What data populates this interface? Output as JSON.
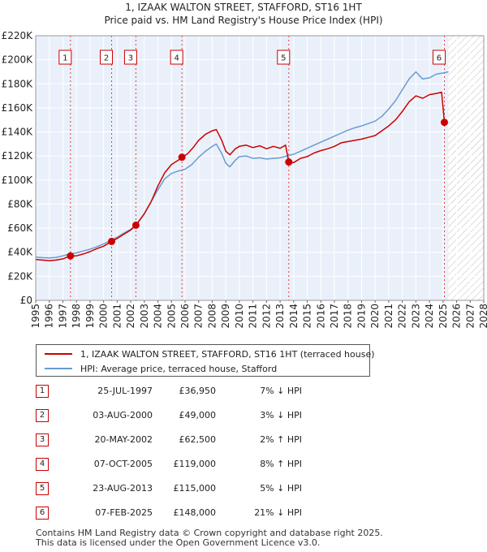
{
  "chart_data": {
    "type": "line",
    "title": "1, IZAAK WALTON STREET, STAFFORD, ST16 1HT",
    "subtitle": "Price paid vs. HM Land Registry's House Price Index (HPI)",
    "x_ticks": [
      "1995",
      "1996",
      "1997",
      "1998",
      "1999",
      "2000",
      "2001",
      "2002",
      "2003",
      "2004",
      "2005",
      "2006",
      "2007",
      "2008",
      "2009",
      "2010",
      "2011",
      "2012",
      "2013",
      "2014",
      "2015",
      "2016",
      "2017",
      "2018",
      "2019",
      "2020",
      "2021",
      "2022",
      "2023",
      "2024",
      "2025",
      "2026",
      "2027",
      "2028"
    ],
    "xlim": [
      1995,
      2028
    ],
    "ylim": [
      0,
      220000
    ],
    "y_ticks": [
      {
        "value": 0,
        "label": "£0"
      },
      {
        "value": 20000,
        "label": "£20K"
      },
      {
        "value": 40000,
        "label": "£40K"
      },
      {
        "value": 60000,
        "label": "£60K"
      },
      {
        "value": 80000,
        "label": "£80K"
      },
      {
        "value": 100000,
        "label": "£100K"
      },
      {
        "value": 120000,
        "label": "£120K"
      },
      {
        "value": 140000,
        "label": "£140K"
      },
      {
        "value": 160000,
        "label": "£160K"
      },
      {
        "value": 180000,
        "label": "£180K"
      },
      {
        "value": 200000,
        "label": "£200K"
      },
      {
        "value": 220000,
        "label": "£220K"
      }
    ],
    "forecast_start": 2025.4,
    "series": [
      {
        "name": "1, IZAAK WALTON STREET, STAFFORD, ST16 1HT (terraced house)",
        "color": "#cc0000",
        "points": [
          [
            1995.0,
            34000
          ],
          [
            1995.5,
            33500
          ],
          [
            1996.0,
            33000
          ],
          [
            1996.5,
            33500
          ],
          [
            1997.0,
            34500
          ],
          [
            1997.56,
            36950
          ],
          [
            1998.0,
            37000
          ],
          [
            1998.5,
            38500
          ],
          [
            1999.0,
            40500
          ],
          [
            1999.5,
            43000
          ],
          [
            2000.0,
            45000
          ],
          [
            2000.59,
            49000
          ],
          [
            2001.0,
            51500
          ],
          [
            2001.5,
            55000
          ],
          [
            2002.0,
            58500
          ],
          [
            2002.38,
            62500
          ],
          [
            2003.0,
            72000
          ],
          [
            2003.5,
            82000
          ],
          [
            2004.0,
            95000
          ],
          [
            2004.5,
            106000
          ],
          [
            2005.0,
            113000
          ],
          [
            2005.5,
            116500
          ],
          [
            2005.77,
            119000
          ],
          [
            2006.2,
            122000
          ],
          [
            2006.6,
            127000
          ],
          [
            2007.0,
            133000
          ],
          [
            2007.5,
            138000
          ],
          [
            2008.0,
            141000
          ],
          [
            2008.3,
            142000
          ],
          [
            2008.7,
            133000
          ],
          [
            2009.0,
            124000
          ],
          [
            2009.3,
            121000
          ],
          [
            2009.7,
            126000
          ],
          [
            2010.0,
            128000
          ],
          [
            2010.5,
            129000
          ],
          [
            2011.0,
            127000
          ],
          [
            2011.5,
            128500
          ],
          [
            2012.0,
            126000
          ],
          [
            2012.5,
            128000
          ],
          [
            2013.0,
            126500
          ],
          [
            2013.4,
            129000
          ],
          [
            2013.64,
            115000
          ],
          [
            2014.0,
            114500
          ],
          [
            2014.5,
            118000
          ],
          [
            2015.0,
            119500
          ],
          [
            2015.5,
            122500
          ],
          [
            2016.0,
            124500
          ],
          [
            2016.5,
            126000
          ],
          [
            2017.0,
            128000
          ],
          [
            2017.5,
            131000
          ],
          [
            2018.0,
            132000
          ],
          [
            2018.5,
            133000
          ],
          [
            2019.0,
            134000
          ],
          [
            2019.5,
            135500
          ],
          [
            2020.0,
            137000
          ],
          [
            2020.5,
            141000
          ],
          [
            2021.0,
            145000
          ],
          [
            2021.5,
            150000
          ],
          [
            2022.0,
            157000
          ],
          [
            2022.5,
            165000
          ],
          [
            2023.0,
            170000
          ],
          [
            2023.5,
            168000
          ],
          [
            2024.0,
            171000
          ],
          [
            2024.5,
            172000
          ],
          [
            2024.9,
            173000
          ],
          [
            2025.1,
            148000
          ],
          [
            2025.3,
            148000
          ]
        ]
      },
      {
        "name": "HPI: Average price, terraced house, Stafford",
        "color": "#6a9bd1",
        "points": [
          [
            1995.0,
            36000
          ],
          [
            1995.5,
            35500
          ],
          [
            1996.0,
            35200
          ],
          [
            1996.5,
            35700
          ],
          [
            1997.0,
            37000
          ],
          [
            1997.5,
            38500
          ],
          [
            1998.0,
            39500
          ],
          [
            1998.5,
            41000
          ],
          [
            1999.0,
            42500
          ],
          [
            1999.5,
            44500
          ],
          [
            2000.0,
            47000
          ],
          [
            2000.5,
            49500
          ],
          [
            2001.0,
            52500
          ],
          [
            2001.5,
            56000
          ],
          [
            2002.0,
            59000
          ],
          [
            2002.5,
            64000
          ],
          [
            2003.0,
            72000
          ],
          [
            2003.5,
            82000
          ],
          [
            2004.0,
            92000
          ],
          [
            2004.5,
            101000
          ],
          [
            2005.0,
            105500
          ],
          [
            2005.5,
            107500
          ],
          [
            2006.0,
            109000
          ],
          [
            2006.5,
            113000
          ],
          [
            2007.0,
            119000
          ],
          [
            2007.5,
            124000
          ],
          [
            2008.0,
            128000
          ],
          [
            2008.3,
            130000
          ],
          [
            2008.7,
            122000
          ],
          [
            2009.0,
            114000
          ],
          [
            2009.3,
            111000
          ],
          [
            2009.7,
            116500
          ],
          [
            2010.0,
            119500
          ],
          [
            2010.5,
            120000
          ],
          [
            2011.0,
            118000
          ],
          [
            2011.5,
            118500
          ],
          [
            2012.0,
            117500
          ],
          [
            2012.5,
            118000
          ],
          [
            2013.0,
            118500
          ],
          [
            2013.5,
            120000
          ],
          [
            2014.0,
            121500
          ],
          [
            2014.5,
            124000
          ],
          [
            2015.0,
            126500
          ],
          [
            2015.5,
            129000
          ],
          [
            2016.0,
            131500
          ],
          [
            2016.5,
            134000
          ],
          [
            2017.0,
            136500
          ],
          [
            2017.5,
            139000
          ],
          [
            2018.0,
            141500
          ],
          [
            2018.5,
            143500
          ],
          [
            2019.0,
            145000
          ],
          [
            2019.5,
            147000
          ],
          [
            2020.0,
            149000
          ],
          [
            2020.5,
            153000
          ],
          [
            2021.0,
            159000
          ],
          [
            2021.5,
            166000
          ],
          [
            2022.0,
            175000
          ],
          [
            2022.5,
            184000
          ],
          [
            2023.0,
            190000
          ],
          [
            2023.5,
            184000
          ],
          [
            2024.0,
            185000
          ],
          [
            2024.5,
            188000
          ],
          [
            2025.0,
            189000
          ],
          [
            2025.4,
            190000
          ]
        ]
      }
    ],
    "sales": [
      {
        "n": "1",
        "x": 1997.56,
        "price": 36950
      },
      {
        "n": "2",
        "x": 2000.59,
        "price": 49000
      },
      {
        "n": "3",
        "x": 2002.38,
        "price": 62500
      },
      {
        "n": "4",
        "x": 2005.77,
        "price": 119000
      },
      {
        "n": "5",
        "x": 2013.64,
        "price": 115000
      },
      {
        "n": "6",
        "x": 2025.1,
        "price": 148000
      }
    ]
  },
  "legend": {
    "property_label": "1, IZAAK WALTON STREET, STAFFORD, ST16 1HT (terraced house)",
    "hpi_label": "HPI: Average price, terraced house, Stafford",
    "property_color": "#cc0000",
    "hpi_color": "#6a9bd1"
  },
  "table": [
    {
      "n": "1",
      "date": "25-JUL-1997",
      "price": "£36,950",
      "hpi": "7% ↓ HPI"
    },
    {
      "n": "2",
      "date": "03-AUG-2000",
      "price": "£49,000",
      "hpi": "3% ↓ HPI"
    },
    {
      "n": "3",
      "date": "20-MAY-2002",
      "price": "£62,500",
      "hpi": "2% ↑ HPI"
    },
    {
      "n": "4",
      "date": "07-OCT-2005",
      "price": "£119,000",
      "hpi": "8% ↑ HPI"
    },
    {
      "n": "5",
      "date": "23-AUG-2013",
      "price": "£115,000",
      "hpi": "5% ↓ HPI"
    },
    {
      "n": "6",
      "date": "07-FEB-2025",
      "price": "£148,000",
      "hpi": "21% ↓ HPI"
    }
  ],
  "footer": {
    "line1": "Contains HM Land Registry data © Crown copyright and database right 2025.",
    "line2": "This data is licensed under the Open Government Licence v3.0."
  }
}
